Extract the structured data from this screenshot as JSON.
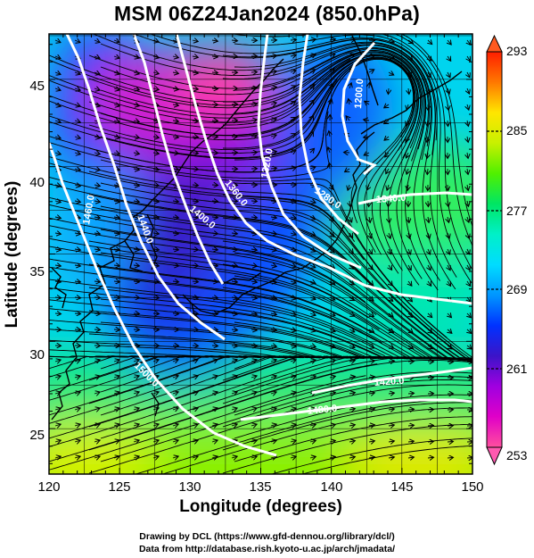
{
  "title": "MSM 06Z24Jan2024 (850.0hPa)",
  "x_axis": {
    "label": "Longitude (degrees)",
    "ticks": [
      "120",
      "125",
      "130",
      "135",
      "140",
      "145",
      "150"
    ],
    "range": [
      120,
      150
    ]
  },
  "y_axis": {
    "label": "Latitude (degrees)",
    "ticks": [
      "25",
      "30",
      "35",
      "40",
      "45"
    ],
    "range": [
      22.4,
      47.6
    ]
  },
  "colorbar": {
    "ticks": [
      "293",
      "285",
      "277",
      "269",
      "261",
      "253"
    ],
    "range": [
      253,
      293
    ],
    "colors": [
      "#ff4f9e",
      "#e000c8",
      "#a000e0",
      "#3c14c8",
      "#0032ff",
      "#0096ff",
      "#00dcff",
      "#00f0c8",
      "#00e664",
      "#50f000",
      "#c8f000",
      "#ffe600",
      "#ff7800",
      "#ff1e00"
    ]
  },
  "contours": {
    "labels": [
      "1200.0",
      "1320.0",
      "1360.0",
      "1400.0",
      "1440.0",
      "1460.0",
      "1340.0",
      "1280.0",
      "1420.0",
      "1480.0",
      "1500.0"
    ]
  },
  "credits": {
    "line1": "Drawing by DCL (https://www.gfd-dennou.org/library/dcl/)",
    "line2": "Data from http://database.rish.kyoto-u.ac.jp/arch/jmadata/"
  },
  "chart_data": {
    "type": "heatmap",
    "title": "MSM 06Z24Jan2024 (850.0hPa)",
    "xlabel": "Longitude (degrees)",
    "ylabel": "Latitude (degrees)",
    "xlim": [
      120,
      150
    ],
    "ylim": [
      22.4,
      47.6
    ],
    "color_scale": {
      "min": 253,
      "max": 293,
      "ticks": [
        253,
        261,
        269,
        277,
        285,
        293
      ]
    },
    "grid": true,
    "overlays": [
      "streamlines",
      "height contours",
      "coastlines"
    ]
  }
}
